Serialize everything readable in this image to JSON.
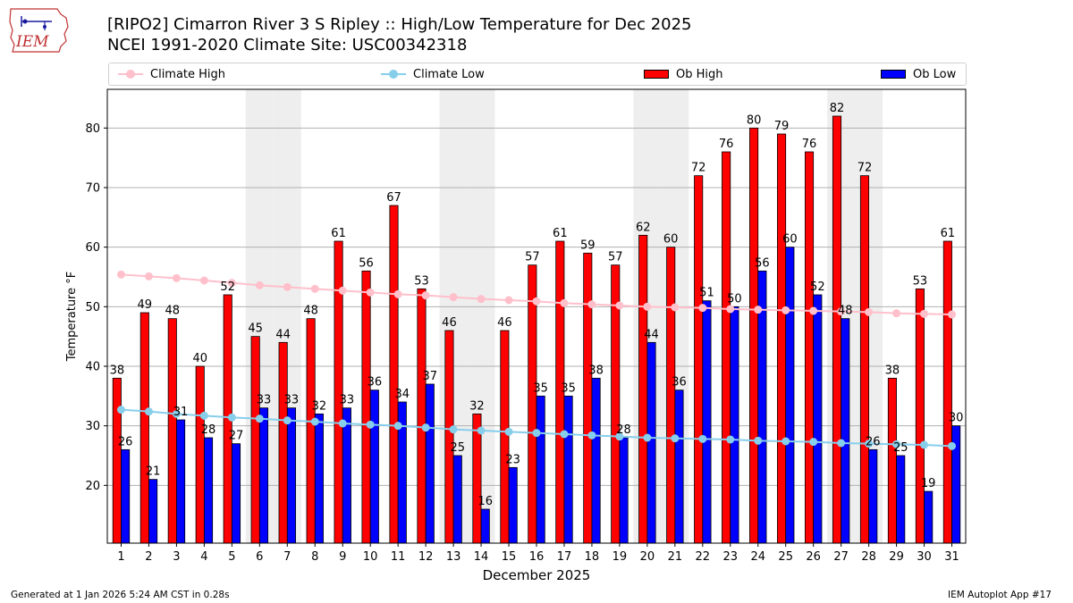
{
  "header": {
    "title_line1": "[RIPO2] Cimarron River 3 S Ripley :: High/Low Temperature for Dec 2025",
    "title_line2": "NCEI 1991-2020 Climate Site: USC00342318"
  },
  "logo": {
    "text": "IEM"
  },
  "legend": {
    "climate_high": "Climate High",
    "climate_low": "Climate Low",
    "ob_high": "Ob High",
    "ob_low": "Ob Low"
  },
  "colors": {
    "ob_high": "#ff0000",
    "ob_low": "#0000ff",
    "climate_high": "#ffc0cb",
    "climate_low": "#87ceeb",
    "weekend_band": "#eeeeee",
    "grid": "#b0b0b0"
  },
  "footer": {
    "generated": "Generated at 1 Jan 2026 5:24 AM CST in 0.28s",
    "app": "IEM Autoplot App #17"
  },
  "chart_data": {
    "type": "bar",
    "xlabel": "December 2025",
    "ylabel": "Temperature °F",
    "ylim": [
      10.3,
      86.5
    ],
    "yticks": [
      20,
      30,
      40,
      50,
      60,
      70,
      80
    ],
    "grid": true,
    "categories": [
      "1",
      "2",
      "3",
      "4",
      "5",
      "6",
      "7",
      "8",
      "9",
      "10",
      "11",
      "12",
      "13",
      "14",
      "15",
      "16",
      "17",
      "18",
      "19",
      "20",
      "21",
      "22",
      "23",
      "24",
      "25",
      "26",
      "27",
      "28",
      "29",
      "30",
      "31"
    ],
    "shaded_days": [
      6,
      7,
      13,
      14,
      20,
      21,
      27,
      28
    ],
    "series": [
      {
        "name": "Ob High",
        "kind": "bar",
        "values": [
          38,
          49,
          48,
          40,
          52,
          45,
          44,
          48,
          61,
          56,
          67,
          53,
          46,
          32,
          46,
          57,
          61,
          59,
          57,
          62,
          60,
          72,
          76,
          80,
          79,
          76,
          82,
          72,
          38,
          53,
          61
        ]
      },
      {
        "name": "Ob Low",
        "kind": "bar",
        "values": [
          26,
          21,
          31,
          28,
          27,
          33,
          33,
          32,
          33,
          36,
          34,
          37,
          25,
          16,
          23,
          35,
          35,
          38,
          28,
          44,
          36,
          51,
          50,
          56,
          60,
          52,
          48,
          26,
          25,
          19,
          30
        ]
      },
      {
        "name": "Climate High",
        "kind": "line",
        "values": [
          55.4,
          55.1,
          54.8,
          54.4,
          54.0,
          53.6,
          53.3,
          53.0,
          52.7,
          52.4,
          52.1,
          51.9,
          51.6,
          51.3,
          51.1,
          50.9,
          50.6,
          50.4,
          50.2,
          50.0,
          49.9,
          49.8,
          49.6,
          49.5,
          49.4,
          49.3,
          49.2,
          49.1,
          48.9,
          48.8,
          48.7
        ]
      },
      {
        "name": "Climate Low",
        "kind": "line",
        "values": [
          32.7,
          32.4,
          32.0,
          31.7,
          31.4,
          31.2,
          30.9,
          30.7,
          30.4,
          30.2,
          30.0,
          29.7,
          29.4,
          29.2,
          29.0,
          28.8,
          28.6,
          28.4,
          28.2,
          28.0,
          27.9,
          27.8,
          27.7,
          27.5,
          27.4,
          27.3,
          27.1,
          27.0,
          26.9,
          26.8,
          26.6
        ]
      }
    ]
  }
}
